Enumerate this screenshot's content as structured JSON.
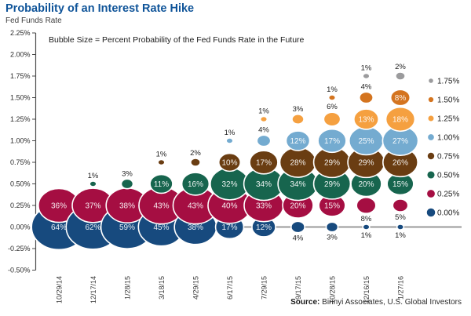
{
  "header": {
    "title": "Probability of an Interest Rate Hike",
    "y_axis_title": "Fed Funds Rate",
    "annotation": "Bubble Size = Percent Probability of the Fed Funds Rate in the Future"
  },
  "source": {
    "prefix": "Source:",
    "text": " Birinyi Associates, U.S. Global Investors"
  },
  "chart_data": {
    "type": "bubble",
    "title": "Probability of an Interest Rate Hike",
    "ylabel": "Fed Funds Rate",
    "ylim": [
      -0.5,
      2.25
    ],
    "y_tick_step": 0.25,
    "grid": false,
    "legend_position": "right",
    "y_ticks": [
      "2.25%",
      "2.00%",
      "1.75%",
      "1.50%",
      "1.25%",
      "1.00%",
      "0.75%",
      "0.50%",
      "0.25%",
      "0.00%",
      "-0.25%",
      "-0.50%"
    ],
    "legend": [
      {
        "label": "1.75%",
        "rate": 1.75,
        "color": "#9B9B9D"
      },
      {
        "label": "1.50%",
        "rate": 1.5,
        "color": "#D4741F"
      },
      {
        "label": "1.25%",
        "rate": 1.25,
        "color": "#F5A040"
      },
      {
        "label": "1.00%",
        "rate": 1.0,
        "color": "#74ABD0"
      },
      {
        "label": "0.75%",
        "rate": 0.75,
        "color": "#6A3D12"
      },
      {
        "label": "0.50%",
        "rate": 0.5,
        "color": "#17654E"
      },
      {
        "label": "0.25%",
        "rate": 0.25,
        "color": "#A50E42"
      },
      {
        "label": "0.00%",
        "rate": 0.0,
        "color": "#174A7E"
      }
    ],
    "columns": [
      {
        "date": "10/29/14",
        "bubbles": [
          {
            "rate": 0.0,
            "pct": 64,
            "label": "in"
          },
          {
            "rate": 0.25,
            "pct": 36,
            "label": "in"
          }
        ]
      },
      {
        "date": "12/17/14",
        "bubbles": [
          {
            "rate": 0.0,
            "pct": 62,
            "label": "in"
          },
          {
            "rate": 0.25,
            "pct": 37,
            "label": "in"
          },
          {
            "rate": 0.5,
            "pct": 1,
            "label": "above"
          }
        ]
      },
      {
        "date": "1/28/15",
        "bubbles": [
          {
            "rate": 0.0,
            "pct": 59,
            "label": "in"
          },
          {
            "rate": 0.25,
            "pct": 38,
            "label": "in"
          },
          {
            "rate": 0.5,
            "pct": 3,
            "label": "above"
          }
        ]
      },
      {
        "date": "3/18/15",
        "bubbles": [
          {
            "rate": 0.0,
            "pct": 45,
            "label": "in"
          },
          {
            "rate": 0.25,
            "pct": 43,
            "label": "in"
          },
          {
            "rate": 0.5,
            "pct": 11,
            "label": "in"
          },
          {
            "rate": 0.75,
            "pct": 1,
            "label": "above"
          }
        ]
      },
      {
        "date": "4/29/15",
        "bubbles": [
          {
            "rate": 0.0,
            "pct": 38,
            "label": "in"
          },
          {
            "rate": 0.25,
            "pct": 43,
            "label": "in"
          },
          {
            "rate": 0.5,
            "pct": 16,
            "label": "in"
          },
          {
            "rate": 0.75,
            "pct": 2,
            "label": "above"
          }
        ]
      },
      {
        "date": "6/17/15",
        "bubbles": [
          {
            "rate": 0.0,
            "pct": 17,
            "label": "in"
          },
          {
            "rate": 0.25,
            "pct": 40,
            "label": "in"
          },
          {
            "rate": 0.5,
            "pct": 32,
            "label": "in"
          },
          {
            "rate": 0.75,
            "pct": 10,
            "label": "in"
          },
          {
            "rate": 1.0,
            "pct": 1,
            "label": "above"
          }
        ]
      },
      {
        "date": "7/29/15",
        "bubbles": [
          {
            "rate": 0.0,
            "pct": 12,
            "label": "in"
          },
          {
            "rate": 0.25,
            "pct": 33,
            "label": "in"
          },
          {
            "rate": 0.5,
            "pct": 34,
            "label": "in"
          },
          {
            "rate": 0.75,
            "pct": 17,
            "label": "in"
          },
          {
            "rate": 1.0,
            "pct": 4,
            "label": "above"
          },
          {
            "rate": 1.25,
            "pct": 1,
            "label": "above"
          }
        ]
      },
      {
        "date": "9/17/15",
        "bubbles": [
          {
            "rate": 0.0,
            "pct": 4,
            "label": "below"
          },
          {
            "rate": 0.25,
            "pct": 20,
            "label": "in"
          },
          {
            "rate": 0.5,
            "pct": 34,
            "label": "in"
          },
          {
            "rate": 0.75,
            "pct": 28,
            "label": "in"
          },
          {
            "rate": 1.0,
            "pct": 12,
            "label": "in"
          },
          {
            "rate": 1.25,
            "pct": 3,
            "label": "above"
          }
        ]
      },
      {
        "date": "10/28/15",
        "bubbles": [
          {
            "rate": 0.0,
            "pct": 3,
            "label": "below"
          },
          {
            "rate": 0.25,
            "pct": 15,
            "label": "in"
          },
          {
            "rate": 0.5,
            "pct": 29,
            "label": "in"
          },
          {
            "rate": 0.75,
            "pct": 29,
            "label": "in"
          },
          {
            "rate": 1.0,
            "pct": 17,
            "label": "in"
          },
          {
            "rate": 1.25,
            "pct": 6,
            "label": "above"
          },
          {
            "rate": 1.5,
            "pct": 1,
            "label": "above"
          }
        ]
      },
      {
        "date": "12/16/15",
        "bubbles": [
          {
            "rate": 0.0,
            "pct": 1,
            "label": "below"
          },
          {
            "rate": 0.25,
            "pct": 8,
            "label": "below"
          },
          {
            "rate": 0.5,
            "pct": 20,
            "label": "in"
          },
          {
            "rate": 0.75,
            "pct": 29,
            "label": "in"
          },
          {
            "rate": 1.0,
            "pct": 25,
            "label": "in"
          },
          {
            "rate": 1.25,
            "pct": 13,
            "label": "in"
          },
          {
            "rate": 1.5,
            "pct": 4,
            "label": "above"
          },
          {
            "rate": 1.75,
            "pct": 1,
            "label": "above"
          }
        ]
      },
      {
        "date": "1/27/16",
        "bubbles": [
          {
            "rate": 0.0,
            "pct": 1,
            "label": "below"
          },
          {
            "rate": 0.25,
            "pct": 5,
            "label": "below"
          },
          {
            "rate": 0.5,
            "pct": 15,
            "label": "in"
          },
          {
            "rate": 0.75,
            "pct": 26,
            "label": "in"
          },
          {
            "rate": 1.0,
            "pct": 27,
            "label": "in"
          },
          {
            "rate": 1.25,
            "pct": 18,
            "label": "in"
          },
          {
            "rate": 1.5,
            "pct": 8,
            "label": "in"
          },
          {
            "rate": 1.75,
            "pct": 2,
            "label": "above"
          }
        ]
      }
    ]
  }
}
